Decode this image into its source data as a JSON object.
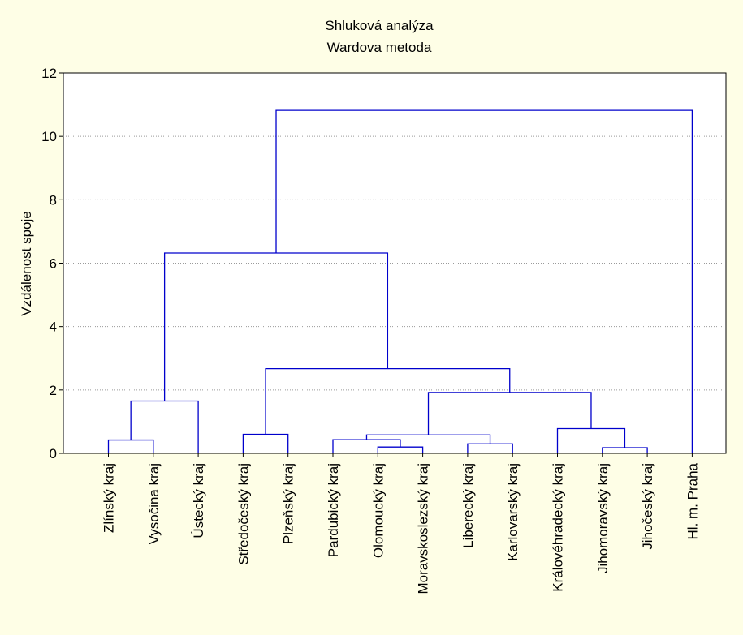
{
  "chart_data": {
    "type": "dendrogram",
    "title": "Shluková analýza",
    "subtitle": "Wardova metoda",
    "ylabel": "Vzdálenost spoje",
    "xlabel": "",
    "ylim": [
      0,
      12
    ],
    "yticks": [
      0,
      2,
      4,
      6,
      8,
      10,
      12
    ],
    "grid": true,
    "line_color": "#0000cc",
    "leaves": [
      "Zlínský kraj",
      "Vysočina kraj",
      "Ústecký kraj",
      "Středočeský kraj",
      "Plzeňský kraj",
      "Pardubický kraj",
      "Olomoucký kraj",
      "Moravskoslezský kraj",
      "Liberecký kraj",
      "Karlovarský kraj",
      "Královéhradecký kraj",
      "Jihomoravský kraj",
      "Jihočeský kraj",
      "Hl. m. Praha"
    ],
    "merges": [
      {
        "a": "L0",
        "b": "L1",
        "height": 0.42
      },
      {
        "a": "C0",
        "b": "L2",
        "height": 1.65
      },
      {
        "a": "L3",
        "b": "L4",
        "height": 0.6
      },
      {
        "a": "L6",
        "b": "L7",
        "height": 0.2
      },
      {
        "a": "L5",
        "b": "C3",
        "height": 0.43
      },
      {
        "a": "L8",
        "b": "L9",
        "height": 0.3
      },
      {
        "a": "C4",
        "b": "C5",
        "height": 0.58
      },
      {
        "a": "L11",
        "b": "L12",
        "height": 0.18
      },
      {
        "a": "L10",
        "b": "C7",
        "height": 0.78
      },
      {
        "a": "C6",
        "b": "C8",
        "height": 1.92
      },
      {
        "a": "C2",
        "b": "C9",
        "height": 2.67
      },
      {
        "a": "C1",
        "b": "C10",
        "height": 6.32
      },
      {
        "a": "C11",
        "b": "L13",
        "height": 10.82
      }
    ]
  }
}
